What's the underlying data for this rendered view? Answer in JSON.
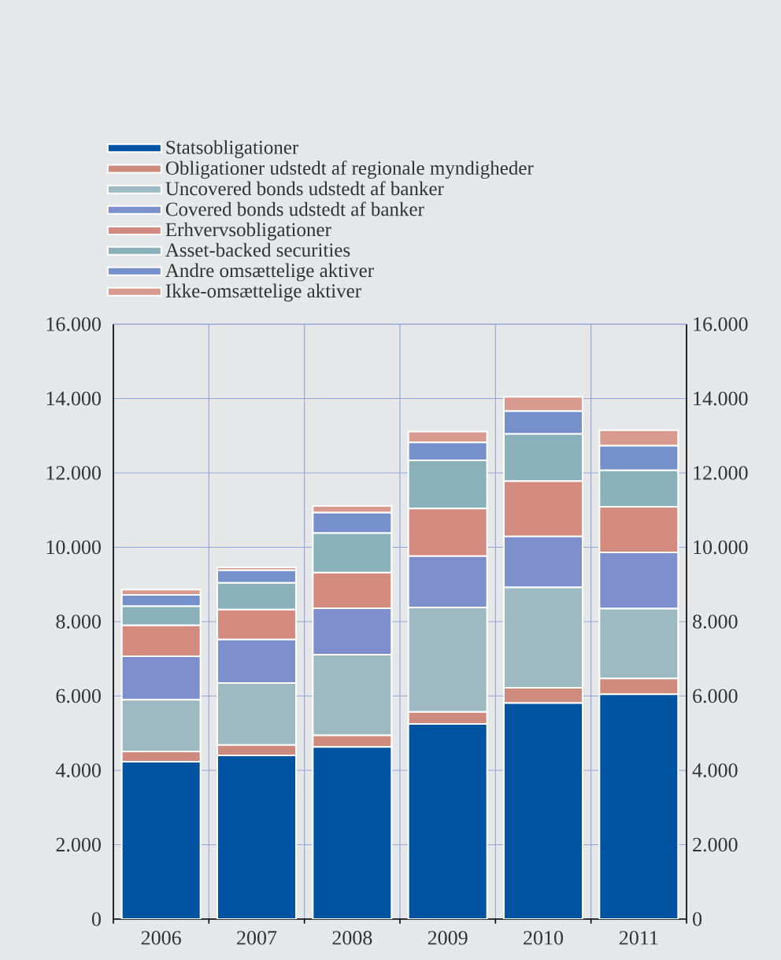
{
  "chart_data": {
    "type": "bar",
    "stacked": true,
    "categories": [
      "2006",
      "2007",
      "2008",
      "2009",
      "2010",
      "2011"
    ],
    "series": [
      {
        "name": "Statsobligationer",
        "color": "#0053a0",
        "values": [
          4230,
          4400,
          4630,
          5250,
          5810,
          6050
        ]
      },
      {
        "name": "Obligationer udstedt af regionale myndigheder",
        "color": "#cf8a7e",
        "values": [
          280,
          280,
          310,
          320,
          410,
          420
        ]
      },
      {
        "name": "Uncovered bonds udstedt af banker",
        "color": "#9dbac2",
        "values": [
          1390,
          1670,
          2170,
          2810,
          2700,
          1880
        ]
      },
      {
        "name": "Covered bonds udstedt af banker",
        "color": "#7d8fcc",
        "values": [
          1170,
          1170,
          1250,
          1380,
          1370,
          1510
        ]
      },
      {
        "name": "Erhvervsobligationer",
        "color": "#d38b80",
        "values": [
          830,
          800,
          960,
          1280,
          1490,
          1230
        ]
      },
      {
        "name": "Asset-backed securities",
        "color": "#8ab1ba",
        "values": [
          510,
          720,
          1060,
          1300,
          1270,
          980
        ]
      },
      {
        "name": "Andre omsættelige aktiver",
        "color": "#7690cc",
        "values": [
          310,
          340,
          550,
          480,
          610,
          660
        ]
      },
      {
        "name": "Ikke-omsættelige aktiver",
        "color": "#d89a8e",
        "values": [
          140,
          80,
          180,
          290,
          390,
          420
        ]
      }
    ],
    "ylim": [
      0,
      16000
    ],
    "yticks": [
      {
        "value": 0,
        "label": "0"
      },
      {
        "value": 2000,
        "label": "2.000"
      },
      {
        "value": 4000,
        "label": "4.000"
      },
      {
        "value": 6000,
        "label": "6.000"
      },
      {
        "value": 8000,
        "label": "8.000"
      },
      {
        "value": 10000,
        "label": "10.000"
      },
      {
        "value": 12000,
        "label": "12.000"
      },
      {
        "value": 14000,
        "label": "14.000"
      },
      {
        "value": 16000,
        "label": "16.000"
      }
    ],
    "y2lim": [
      0,
      16000
    ],
    "y2ticks": [
      {
        "value": 0,
        "label": "0"
      },
      {
        "value": 2000,
        "label": "2.000"
      },
      {
        "value": 4000,
        "label": "4.000"
      },
      {
        "value": 6000,
        "label": "6.000"
      },
      {
        "value": 8000,
        "label": "8.000"
      },
      {
        "value": 10000,
        "label": "10.000"
      },
      {
        "value": 12000,
        "label": "12.000"
      },
      {
        "value": 14000,
        "label": "14.000"
      },
      {
        "value": 16000,
        "label": "16.000"
      }
    ],
    "grid": true,
    "legend": "top"
  }
}
